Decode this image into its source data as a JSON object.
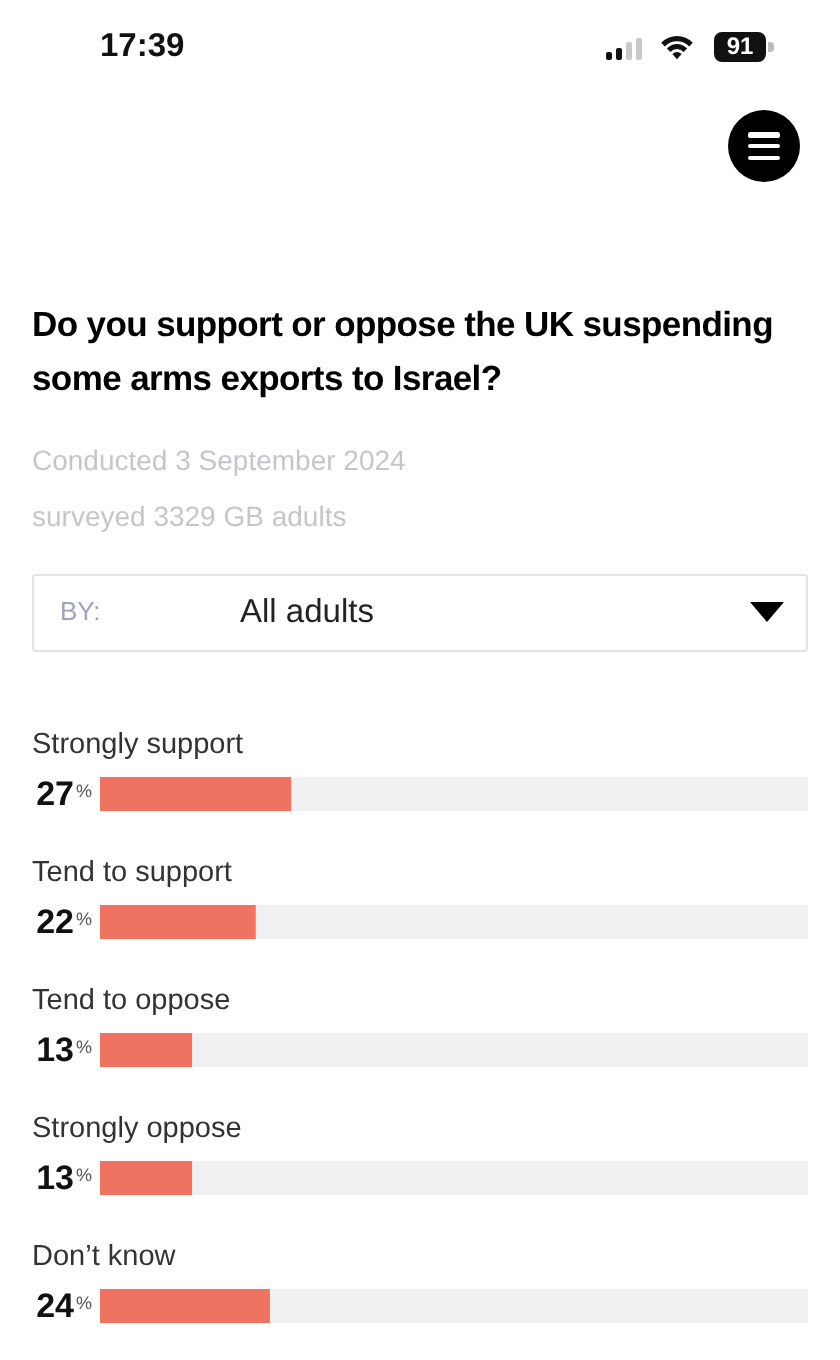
{
  "chart_data": {
    "type": "bar",
    "title": "Do you support or oppose the UK suspending some arms exports to Israel?",
    "subtitle": "Conducted 3 September 2024",
    "annotations": [
      "17:39",
      "91",
      "surveyed 3329 GB adults",
      "BY:",
      "All adults"
    ],
    "orientation": "horizontal",
    "categories": [
      "Strongly support",
      "Tend to support",
      "Tend to oppose",
      "Strongly oppose",
      "Don’t know"
    ],
    "values": [
      27,
      22,
      13,
      13,
      24
    ],
    "color": "#ee7361",
    "value_labels": [
      "27$^{%}$",
      "22$^{%}$",
      "13$^{%}$",
      "13$^{%}$",
      "24$^{%}$"
    ],
    "xlim": [
      0,
      100
    ],
    "tick_labels": "y"
  }
}
